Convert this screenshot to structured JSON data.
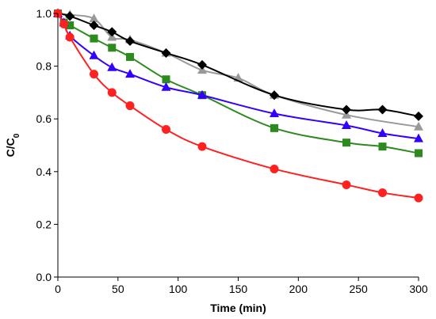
{
  "chart_data": {
    "type": "line",
    "xlabel": "Time (min)",
    "ylabel": {
      "main": "C/C",
      "subscript": "0"
    },
    "xlim": [
      0,
      300
    ],
    "ylim": [
      0.0,
      1.0
    ],
    "x_ticks": [
      0,
      50,
      100,
      150,
      200,
      250,
      300
    ],
    "y_ticks": [
      "0.0",
      "0.2",
      "0.4",
      "0.6",
      "0.8",
      "1.0"
    ],
    "grid": false,
    "legend": "none",
    "series": [
      {
        "color": "#999999",
        "marker": "triangle",
        "points": [
          [
            0,
            1.0
          ],
          [
            10,
            0.995
          ],
          [
            30,
            0.98
          ],
          [
            45,
            0.91
          ],
          [
            60,
            0.9
          ],
          [
            90,
            0.85
          ],
          [
            120,
            0.785
          ],
          [
            150,
            0.755
          ],
          [
            180,
            0.69
          ],
          [
            240,
            0.615
          ],
          [
            300,
            0.57
          ]
        ]
      },
      {
        "color": "#000000",
        "marker": "diamond",
        "points": [
          [
            0,
            1.0
          ],
          [
            10,
            0.99
          ],
          [
            30,
            0.955
          ],
          [
            45,
            0.93
          ],
          [
            60,
            0.895
          ],
          [
            90,
            0.85
          ],
          [
            120,
            0.805
          ],
          [
            180,
            0.69
          ],
          [
            240,
            0.635
          ],
          [
            270,
            0.635
          ],
          [
            300,
            0.61
          ]
        ]
      },
      {
        "color": "#2d8a1e",
        "marker": "square",
        "points": [
          [
            0,
            1.0
          ],
          [
            5,
            0.965
          ],
          [
            10,
            0.955
          ],
          [
            30,
            0.905
          ],
          [
            45,
            0.87
          ],
          [
            60,
            0.835
          ],
          [
            90,
            0.75
          ],
          [
            120,
            0.69
          ],
          [
            180,
            0.565
          ],
          [
            240,
            0.51
          ],
          [
            270,
            0.495
          ],
          [
            300,
            0.47
          ]
        ]
      },
      {
        "color": "#3300ff",
        "marker": "triangle",
        "points": [
          [
            0,
            1.0
          ],
          [
            5,
            0.965
          ],
          [
            10,
            0.915
          ],
          [
            30,
            0.84
          ],
          [
            45,
            0.795
          ],
          [
            60,
            0.77
          ],
          [
            90,
            0.72
          ],
          [
            120,
            0.69
          ],
          [
            180,
            0.62
          ],
          [
            240,
            0.575
          ],
          [
            270,
            0.545
          ],
          [
            300,
            0.525
          ]
        ]
      },
      {
        "color": "#ff2020",
        "marker": "circle",
        "points": [
          [
            0,
            1.0
          ],
          [
            5,
            0.96
          ],
          [
            10,
            0.91
          ],
          [
            30,
            0.77
          ],
          [
            45,
            0.7
          ],
          [
            60,
            0.65
          ],
          [
            90,
            0.56
          ],
          [
            120,
            0.495
          ],
          [
            180,
            0.41
          ],
          [
            240,
            0.35
          ],
          [
            270,
            0.32
          ],
          [
            300,
            0.3
          ]
        ]
      }
    ]
  }
}
